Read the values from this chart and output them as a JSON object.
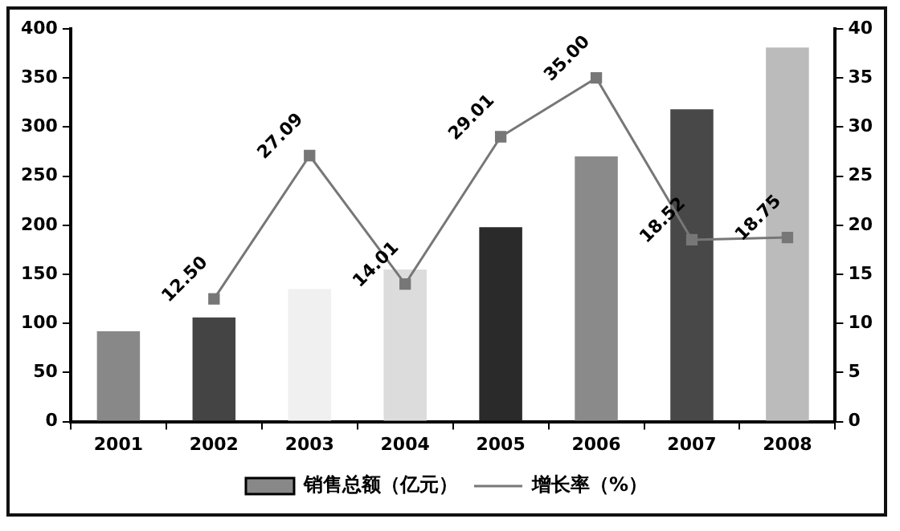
{
  "chart_data": {
    "type": "bar",
    "categories": [
      "2001",
      "2002",
      "2003",
      "2004",
      "2005",
      "2006",
      "2007",
      "2008"
    ],
    "series": [
      {
        "name": "销售总额（亿元）",
        "color": "#888888",
        "colors": [
          "#888888",
          "#444444",
          "#f0f0f0",
          "#dcdcdc",
          "#2a2a2a",
          "#8a8a8a",
          "#484848",
          "#bbbbbb"
        ],
        "values": [
          92,
          106,
          135,
          155,
          198,
          270,
          318,
          381
        ]
      },
      {
        "name": "增长率（%）",
        "type": "line",
        "axis": "y2",
        "color": "#777777",
        "values": [
          null,
          12.5,
          27.09,
          14.01,
          29.01,
          35.0,
          18.52,
          18.75
        ],
        "value_labels": [
          null,
          "12.50",
          "27.09",
          "14.01",
          "29.01",
          "35.00",
          "18.52",
          "18.75"
        ]
      }
    ],
    "ylim": [
      0,
      400
    ],
    "yticks": [
      0,
      50,
      100,
      150,
      200,
      250,
      300,
      350,
      400
    ],
    "y2lim": [
      0,
      40
    ],
    "y2ticks": [
      0,
      5,
      10,
      15,
      20,
      25,
      30,
      35,
      40
    ],
    "grid": false,
    "legend": "bottom",
    "marker": "square",
    "line_style": "solid"
  }
}
